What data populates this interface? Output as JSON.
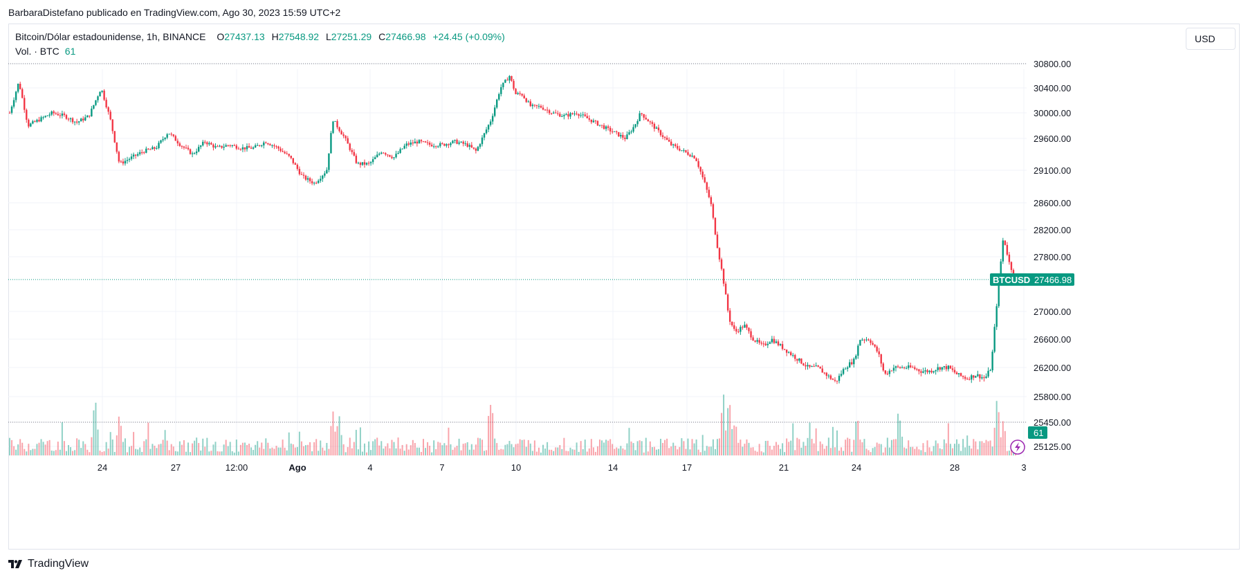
{
  "caption": "BarbaraDistefano publicado en TradingView.com, Ago 30, 2023 15:59 UTC+2",
  "legend": {
    "symbol": "Bitcoin/Dólar estadounidense, 1h, BINANCE",
    "o_label": "O",
    "o_value": "27437.13",
    "h_label": "H",
    "h_value": "27548.92",
    "l_label": "L",
    "l_value": "27251.29",
    "c_label": "C",
    "c_value": "27466.98",
    "change": "+24.45 (+0.09%)",
    "volume_label": "Vol. · BTC",
    "volume_value": "61"
  },
  "currency": "USD",
  "footer_brand": "TradingView",
  "colors": {
    "up": "#089981",
    "down": "#f23645",
    "grid": "#f0f3fa",
    "text": "#131722"
  },
  "icons": [
    "tradingview-logo-icon",
    "lightning-icon"
  ],
  "chart_data": {
    "type": "candlestick",
    "symbol": "BTCUSD",
    "interval": "1h",
    "price_axis_labels": [
      30800,
      30400,
      30000,
      29600,
      29100,
      28600,
      28200,
      27800,
      27000,
      26600,
      26200,
      25800,
      25450,
      25125
    ],
    "price_axis_label_text": [
      "30800.00",
      "30400.00",
      "30000.00",
      "29600.00",
      "29100.00",
      "28600.00",
      "28200.00",
      "27800.00",
      "27000.00",
      "26600.00",
      "26200.00",
      "25800.00",
      "25450.00",
      "25125.00"
    ],
    "time_axis_labels": [
      "24",
      "27",
      "12:00",
      "Ago",
      "4",
      "7",
      "10",
      "14",
      "17",
      "21",
      "24",
      "28",
      "3"
    ],
    "last_price_tag": {
      "symbol": "BTCUSD",
      "value": "27466.98"
    },
    "volume_tag": "61",
    "high_line": 30800,
    "last_line": 27466.98,
    "low_line": 25450,
    "price_path": [
      [
        0,
        30000
      ],
      [
        3,
        30500
      ],
      [
        6,
        29800
      ],
      [
        10,
        29900
      ],
      [
        14,
        30000
      ],
      [
        18,
        29950
      ],
      [
        22,
        29850
      ],
      [
        26,
        29950
      ],
      [
        30,
        30400
      ],
      [
        33,
        29900
      ],
      [
        36,
        29200
      ],
      [
        40,
        29300
      ],
      [
        44,
        29400
      ],
      [
        48,
        29450
      ],
      [
        52,
        29700
      ],
      [
        56,
        29500
      ],
      [
        60,
        29350
      ],
      [
        64,
        29550
      ],
      [
        68,
        29450
      ],
      [
        72,
        29500
      ],
      [
        76,
        29450
      ],
      [
        80,
        29450
      ],
      [
        84,
        29550
      ],
      [
        88,
        29450
      ],
      [
        92,
        29300
      ],
      [
        96,
        29000
      ],
      [
        100,
        28900
      ],
      [
        104,
        29100
      ],
      [
        106,
        29900
      ],
      [
        110,
        29600
      ],
      [
        114,
        29200
      ],
      [
        118,
        29200
      ],
      [
        122,
        29400
      ],
      [
        126,
        29300
      ],
      [
        130,
        29500
      ],
      [
        134,
        29550
      ],
      [
        138,
        29500
      ],
      [
        142,
        29500
      ],
      [
        146,
        29550
      ],
      [
        150,
        29500
      ],
      [
        153,
        29400
      ],
      [
        156,
        29700
      ],
      [
        158,
        29900
      ],
      [
        161,
        30400
      ],
      [
        164,
        30600
      ],
      [
        166,
        30300
      ],
      [
        168,
        30300
      ],
      [
        171,
        30100
      ],
      [
        174,
        30100
      ],
      [
        178,
        30000
      ],
      [
        182,
        29950
      ],
      [
        186,
        30000
      ],
      [
        190,
        29900
      ],
      [
        194,
        29800
      ],
      [
        198,
        29700
      ],
      [
        202,
        29600
      ],
      [
        205,
        29800
      ],
      [
        207,
        30000
      ],
      [
        209,
        29900
      ],
      [
        213,
        29700
      ],
      [
        217,
        29500
      ],
      [
        221,
        29400
      ],
      [
        225,
        29300
      ],
      [
        228,
        28900
      ],
      [
        230,
        28600
      ],
      [
        232,
        28000
      ],
      [
        234,
        27500
      ],
      [
        236,
        26900
      ],
      [
        238,
        26700
      ],
      [
        241,
        26800
      ],
      [
        244,
        26600
      ],
      [
        247,
        26500
      ],
      [
        250,
        26600
      ],
      [
        253,
        26500
      ],
      [
        256,
        26400
      ],
      [
        259,
        26300
      ],
      [
        262,
        26200
      ],
      [
        265,
        26200
      ],
      [
        268,
        26100
      ],
      [
        271,
        26000
      ],
      [
        274,
        26200
      ],
      [
        277,
        26300
      ],
      [
        279,
        26600
      ],
      [
        282,
        26600
      ],
      [
        285,
        26400
      ],
      [
        287,
        26100
      ],
      [
        290,
        26200
      ],
      [
        293,
        26200
      ],
      [
        296,
        26200
      ],
      [
        299,
        26150
      ],
      [
        302,
        26150
      ],
      [
        305,
        26200
      ],
      [
        308,
        26200
      ],
      [
        311,
        26100
      ],
      [
        314,
        26050
      ],
      [
        317,
        26100
      ],
      [
        320,
        26050
      ],
      [
        322,
        26200
      ],
      [
        324,
        27200
      ],
      [
        326,
        28100
      ],
      [
        328,
        27700
      ],
      [
        330,
        27466.98
      ]
    ],
    "volume_peaks": [
      [
        28,
        1.0
      ],
      [
        36,
        0.7
      ],
      [
        108,
        0.7
      ],
      [
        106,
        0.75
      ],
      [
        158,
        0.95
      ],
      [
        234,
        0.95
      ],
      [
        236,
        1.0
      ],
      [
        238,
        0.6
      ],
      [
        278,
        0.7
      ],
      [
        292,
        0.6
      ],
      [
        324,
        1.0
      ],
      [
        326,
        0.6
      ]
    ]
  }
}
